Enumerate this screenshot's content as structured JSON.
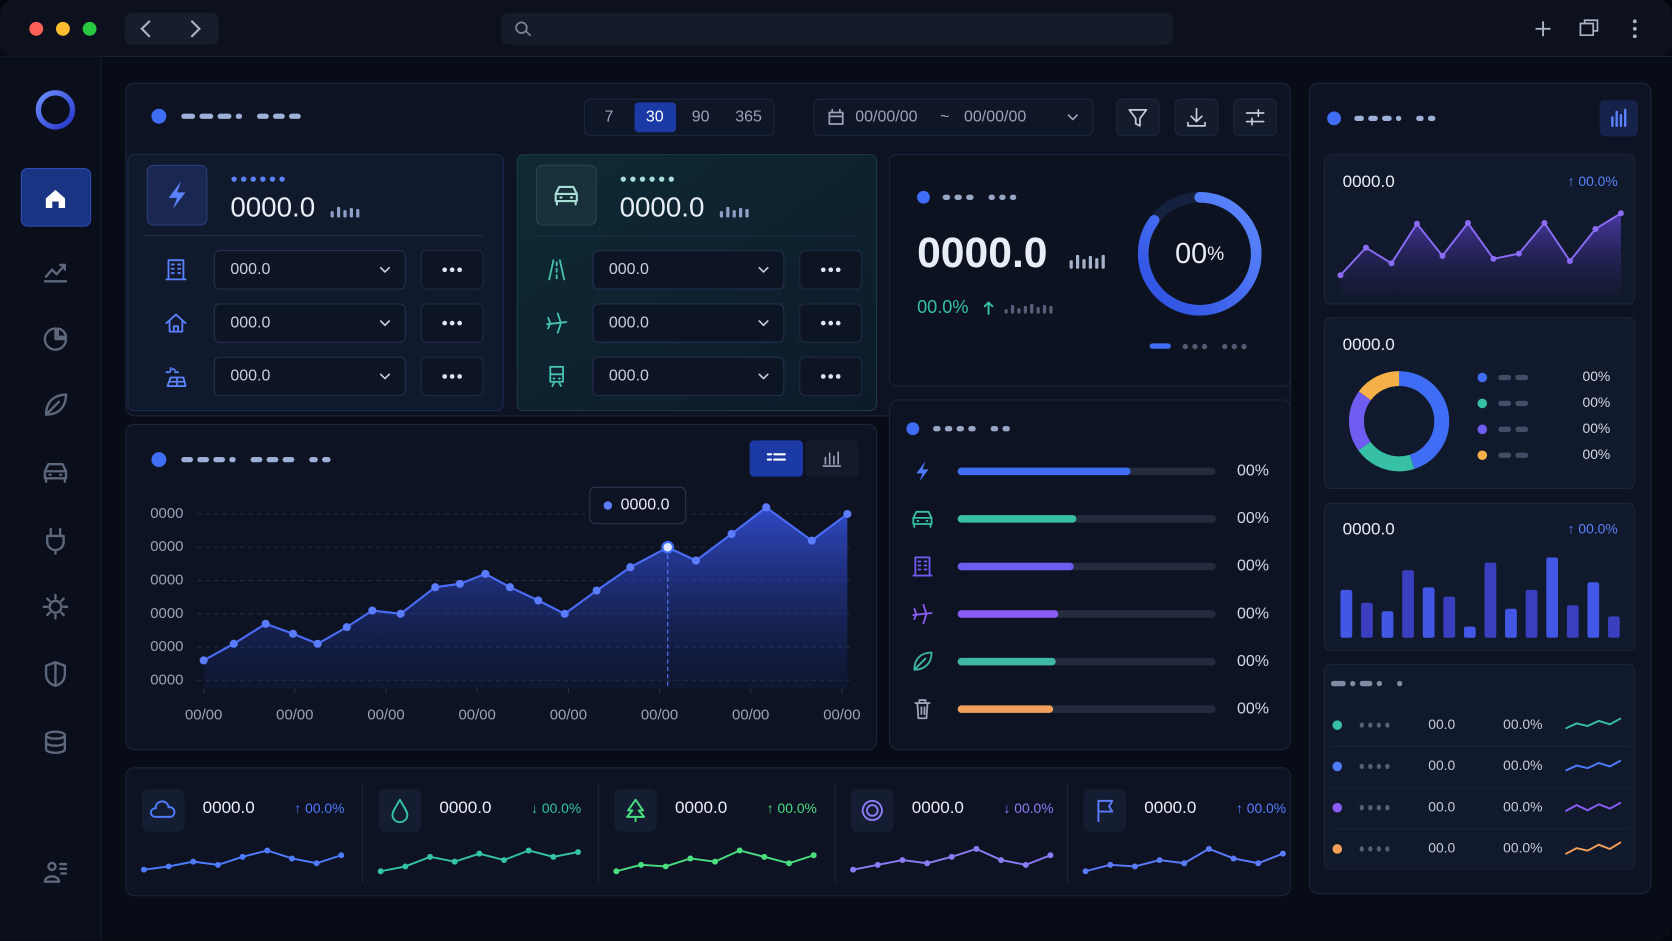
{
  "toolbar": {
    "ranges": [
      "7",
      "30",
      "90",
      "365"
    ],
    "date_from": "00/00/00",
    "date_separator": "~",
    "date_to": "00/00/00"
  },
  "energy": {
    "value": "0000.0",
    "rows": [
      "000.0",
      "000.0",
      "000.0"
    ]
  },
  "transport": {
    "value": "0000.0",
    "rows": [
      "000.0",
      "000.0",
      "000.0"
    ]
  },
  "summary": {
    "value": "0000.0",
    "change": "00.0%",
    "gauge": {
      "value": "00",
      "unit": "%",
      "fill": 85
    }
  },
  "chart_data": {
    "type": "area",
    "tooltip": "0000.0",
    "color": "#4a6cf7",
    "grid": true,
    "x": [
      0,
      0.33,
      0.68,
      0.98,
      1.25,
      1.57,
      1.85,
      2.16,
      2.54,
      2.81,
      3.09,
      3.36,
      3.67,
      3.96,
      4.31,
      4.68,
      5.09,
      5.4,
      5.79,
      6.17,
      6.67,
      7.06
    ],
    "values": [
      0.6,
      1.1,
      1.7,
      1.4,
      1.1,
      1.6,
      2.1,
      2.0,
      2.8,
      2.9,
      3.2,
      2.8,
      2.4,
      2.0,
      2.7,
      3.4,
      4.0,
      3.6,
      4.4,
      5.2,
      4.2,
      5.0
    ],
    "xlim": [
      -0.07,
      7.1
    ],
    "ylim": [
      -0.25,
      5.5
    ],
    "xticks": [
      {
        "value": 0,
        "label": "00/00"
      },
      {
        "value": 1,
        "label": "00/00"
      },
      {
        "value": 2,
        "label": "00/00"
      },
      {
        "value": 3,
        "label": "00/00"
      },
      {
        "value": 4,
        "label": "00/00"
      },
      {
        "value": 5,
        "label": "00/00"
      },
      {
        "value": 6,
        "label": "00/00"
      },
      {
        "value": 7,
        "label": "00/00"
      }
    ],
    "yticks": [
      {
        "value": 5,
        "label": "0000"
      },
      {
        "value": 4,
        "label": "0000"
      },
      {
        "value": 3,
        "label": "0000"
      },
      {
        "value": 2,
        "label": "0000"
      },
      {
        "value": 1,
        "label": "0000"
      },
      {
        "value": 0,
        "label": "0000"
      }
    ]
  },
  "progress": [
    {
      "label": "00%",
      "fill": 67,
      "color": "#3f6df5"
    },
    {
      "label": "00%",
      "fill": 46,
      "color": "#37c0a6"
    },
    {
      "label": "00%",
      "fill": 45,
      "color": "#6f5cf0"
    },
    {
      "label": "00%",
      "fill": 39,
      "color": "#8b5cf6"
    },
    {
      "label": "00%",
      "fill": 38,
      "color": "#3fb8a8"
    },
    {
      "label": "00%",
      "fill": 37,
      "color": "#f5a05a"
    }
  ],
  "metrics": [
    {
      "value": "0000.0",
      "change": "↑ 00.0%",
      "color": "#4f7cff",
      "trend": [
        15,
        25,
        40,
        30,
        55,
        75,
        50,
        35,
        60
      ]
    },
    {
      "value": "0000.0",
      "change": "↓ 00.0%",
      "color": "#34c3a6",
      "trend": [
        10,
        25,
        55,
        40,
        65,
        45,
        75,
        55,
        70
      ]
    },
    {
      "value": "0000.0",
      "change": "↑ 00.0%",
      "color": "#4ade80",
      "trend": [
        10,
        30,
        25,
        50,
        40,
        75,
        55,
        35,
        60
      ]
    },
    {
      "value": "0000.0",
      "change": "↓ 00.0%",
      "color": "#8b7cf6",
      "trend": [
        15,
        30,
        45,
        35,
        55,
        80,
        45,
        30,
        60
      ]
    },
    {
      "value": "0000.0",
      "change": "↑ 00.0%",
      "color": "#5b7cff",
      "trend": [
        10,
        30,
        25,
        45,
        35,
        80,
        50,
        35,
        65
      ]
    }
  ],
  "side": {
    "trend_card": {
      "value": "0000.0",
      "change": "↑ 00.0%",
      "trend": [
        17,
        54,
        33,
        86,
        43,
        87,
        39,
        46,
        87,
        36,
        79,
        100
      ]
    },
    "share_card": {
      "value": "0000.0",
      "segments": [
        {
          "label": "00%",
          "color": "#3f6df5",
          "share": 45
        },
        {
          "label": "00%",
          "color": "#37c0a6",
          "share": 20
        },
        {
          "label": "00%",
          "color": "#6f5cf0",
          "share": 20
        },
        {
          "label": "00%",
          "color": "#f5b04a",
          "share": 15
        }
      ]
    },
    "bars_card": {
      "value": "0000.0",
      "change": "↑ 00.0%",
      "bars": [
        56,
        41,
        31,
        79,
        59,
        48,
        13,
        88,
        34,
        56,
        94,
        38,
        65,
        25
      ]
    },
    "list": [
      {
        "value": "00.0",
        "change": "00.0%",
        "color": "#37c0a6",
        "trend": [
          30,
          60,
          45,
          75,
          55,
          90
        ]
      },
      {
        "value": "00.0",
        "change": "00.0%",
        "color": "#4f7cff",
        "trend": [
          25,
          55,
          40,
          70,
          50,
          85
        ]
      },
      {
        "value": "00.0",
        "change": "00.0%",
        "color": "#8b5cf6",
        "trend": [
          30,
          65,
          35,
          70,
          45,
          80
        ]
      },
      {
        "value": "00.0",
        "change": "00.0%",
        "color": "#f5a05a",
        "trend": [
          20,
          55,
          40,
          75,
          50,
          90
        ]
      }
    ]
  }
}
